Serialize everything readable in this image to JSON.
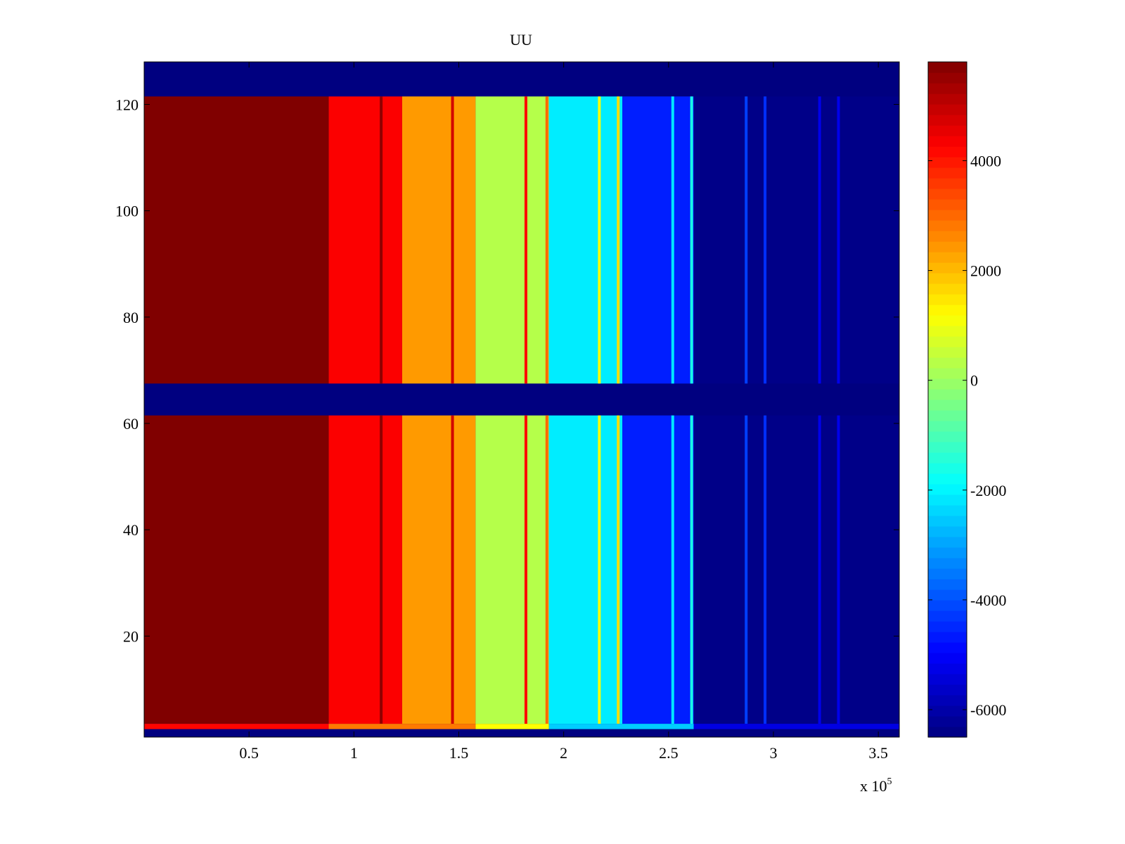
{
  "chart_data": {
    "type": "heatmap",
    "title": "UU",
    "xlabel": "",
    "ylabel": "",
    "x_exponent_label": "x 10",
    "x_exponent": "5",
    "xlim": [
      0,
      3.6
    ],
    "ylim": [
      1,
      128
    ],
    "grid": false,
    "colormap": "jet",
    "xticks": [
      {
        "value": 0.5,
        "label": "0.5"
      },
      {
        "value": 1,
        "label": "1"
      },
      {
        "value": 1.5,
        "label": "1.5"
      },
      {
        "value": 2,
        "label": "2"
      },
      {
        "value": 2.5,
        "label": "2.5"
      },
      {
        "value": 3,
        "label": "3"
      },
      {
        "value": 3.5,
        "label": "3.5"
      }
    ],
    "yticks": [
      {
        "value": 20,
        "label": "20"
      },
      {
        "value": 40,
        "label": "40"
      },
      {
        "value": 60,
        "label": "60"
      },
      {
        "value": 80,
        "label": "80"
      },
      {
        "value": 100,
        "label": "100"
      },
      {
        "value": 120,
        "label": "120"
      }
    ],
    "colorbar": {
      "clim": [
        -6500,
        5800
      ],
      "ticks": [
        {
          "value": 4000,
          "label": "4000"
        },
        {
          "value": 2000,
          "label": "2000"
        },
        {
          "value": 0,
          "label": "0"
        },
        {
          "value": -2000,
          "label": "-2000"
        },
        {
          "value": -4000,
          "label": "-4000"
        },
        {
          "value": -6000,
          "label": "-6000"
        }
      ]
    },
    "background_value": -6500,
    "row_bands": [
      {
        "y_range": [
          3.5,
          61.5
        ]
      },
      {
        "y_range": [
          67.5,
          121.5
        ]
      }
    ],
    "column_bands": [
      {
        "x_range": [
          0,
          0.88
        ],
        "value": 5800
      },
      {
        "x_range": [
          0.88,
          1.23
        ],
        "value": 4300
      },
      {
        "x_range": [
          1.23,
          1.58
        ],
        "value": 2400
      },
      {
        "x_range": [
          1.58,
          1.93
        ],
        "value": 300
      },
      {
        "x_range": [
          1.93,
          2.28
        ],
        "value": -2100
      },
      {
        "x_range": [
          2.28,
          2.62
        ],
        "value": -4600
      },
      {
        "x_range": [
          2.62,
          3.6
        ],
        "value": -6400
      }
    ],
    "column_lines": [
      {
        "x": 1.13,
        "value": 5600
      },
      {
        "x": 1.47,
        "value": 4800
      },
      {
        "x": 1.82,
        "value": 4200
      },
      {
        "x": 1.92,
        "value": 3000
      },
      {
        "x": 2.17,
        "value": 1200
      },
      {
        "x": 2.26,
        "value": 1600
      },
      {
        "x": 2.52,
        "value": -2200
      },
      {
        "x": 2.61,
        "value": -1600
      },
      {
        "x": 2.87,
        "value": -4200
      },
      {
        "x": 2.96,
        "value": -4400
      },
      {
        "x": 3.22,
        "value": -5200
      },
      {
        "x": 3.31,
        "value": -5200
      }
    ],
    "bottom_row": {
      "y_range": [
        2.5,
        3.5
      ],
      "values": [
        {
          "x_range": [
            0,
            0.88
          ],
          "value": 4200
        },
        {
          "x_range": [
            0.88,
            1.58
          ],
          "value": 2800
        },
        {
          "x_range": [
            1.58,
            1.93
          ],
          "value": 1200
        },
        {
          "x_range": [
            1.93,
            2.62
          ],
          "value": -2500
        },
        {
          "x_range": [
            2.62,
            3.6
          ],
          "value": -5300
        }
      ]
    }
  }
}
